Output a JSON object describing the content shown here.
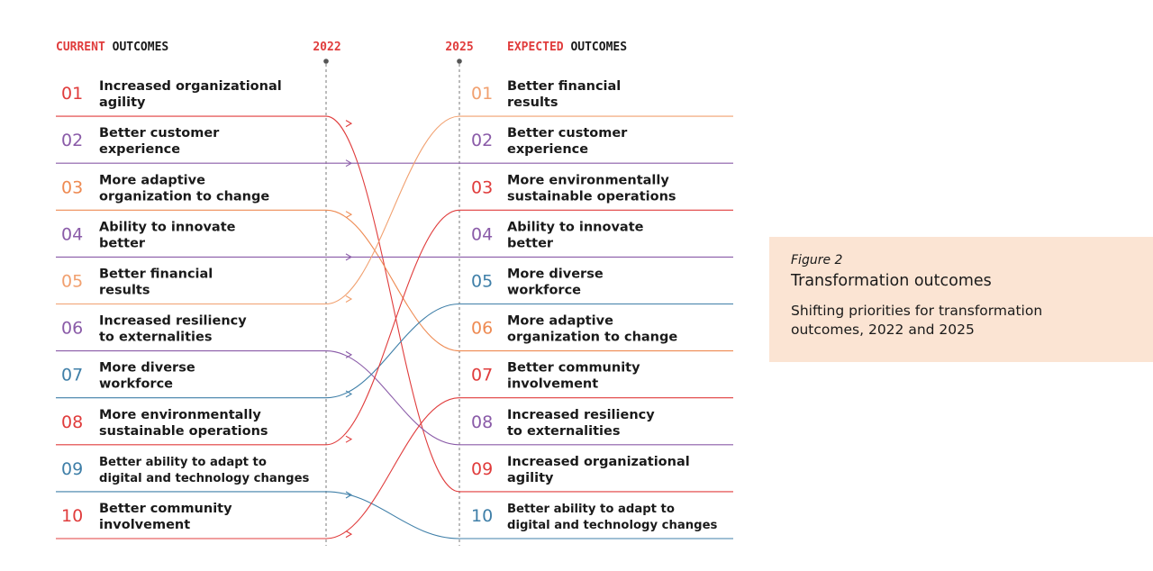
{
  "colors": {
    "red": "#e03c3c",
    "orange": "#ee8a52",
    "purple": "#8a5ba8",
    "blue": "#3f7fa8",
    "salmon": "#f1a06f",
    "dark": "#1a1a1a",
    "grey": "#555555",
    "card_bg": "#fbe4d3"
  },
  "chart_data": {
    "type": "slope",
    "left_header": {
      "accent": "CURRENT",
      "rest": " OUTCOMES"
    },
    "right_header": {
      "accent": "EXPECTED",
      "rest": " OUTCOMES"
    },
    "left_year": "2022",
    "right_year": "2025",
    "left_items": [
      {
        "num": "01",
        "lines": [
          "Increased organizational",
          "agility"
        ],
        "color": "red",
        "target": 9
      },
      {
        "num": "02",
        "lines": [
          "Better customer",
          "experience"
        ],
        "color": "purple",
        "target": 2
      },
      {
        "num": "03",
        "lines": [
          "More adaptive",
          "organization to change"
        ],
        "color": "orange",
        "target": 6
      },
      {
        "num": "04",
        "lines": [
          "Ability to innovate",
          "better"
        ],
        "color": "purple",
        "target": 4
      },
      {
        "num": "05",
        "lines": [
          "Better financial",
          "results"
        ],
        "color": "salmon",
        "target": 1
      },
      {
        "num": "06",
        "lines": [
          "Increased resiliency",
          "to externalities"
        ],
        "color": "purple",
        "target": 8
      },
      {
        "num": "07",
        "lines": [
          "More diverse",
          "workforce"
        ],
        "color": "blue",
        "target": 5
      },
      {
        "num": "08",
        "lines": [
          "More environmentally",
          "sustainable operations"
        ],
        "color": "red",
        "target": 3
      },
      {
        "num": "09",
        "lines": [
          "Better ability to adapt to",
          "digital and technology changes"
        ],
        "color": "blue",
        "target": 10,
        "small": true
      },
      {
        "num": "10",
        "lines": [
          "Better community",
          "involvement"
        ],
        "color": "red",
        "target": 7
      }
    ],
    "right_items": [
      {
        "num": "01",
        "lines": [
          "Better financial",
          "results"
        ],
        "color": "salmon"
      },
      {
        "num": "02",
        "lines": [
          "Better customer",
          "experience"
        ],
        "color": "purple"
      },
      {
        "num": "03",
        "lines": [
          "More environmentally",
          "sustainable operations"
        ],
        "color": "red"
      },
      {
        "num": "04",
        "lines": [
          "Ability to innovate",
          "better"
        ],
        "color": "purple"
      },
      {
        "num": "05",
        "lines": [
          "More diverse",
          "workforce"
        ],
        "color": "blue"
      },
      {
        "num": "06",
        "lines": [
          "More adaptive",
          "organization to change"
        ],
        "color": "orange"
      },
      {
        "num": "07",
        "lines": [
          "Better community",
          "involvement"
        ],
        "color": "red"
      },
      {
        "num": "08",
        "lines": [
          "Increased resiliency",
          "to externalities"
        ],
        "color": "purple"
      },
      {
        "num": "09",
        "lines": [
          "Increased organizational",
          "agility"
        ],
        "color": "red"
      },
      {
        "num": "10",
        "lines": [
          "Better ability to adapt to",
          "digital and technology changes"
        ],
        "color": "blue",
        "small": true
      }
    ]
  },
  "figure": {
    "label": "Figure 2",
    "title": "Transformation outcomes",
    "subtitle_line1": "Shifting priorities for transformation",
    "subtitle_line2": "outcomes, 2022 and 2025"
  }
}
